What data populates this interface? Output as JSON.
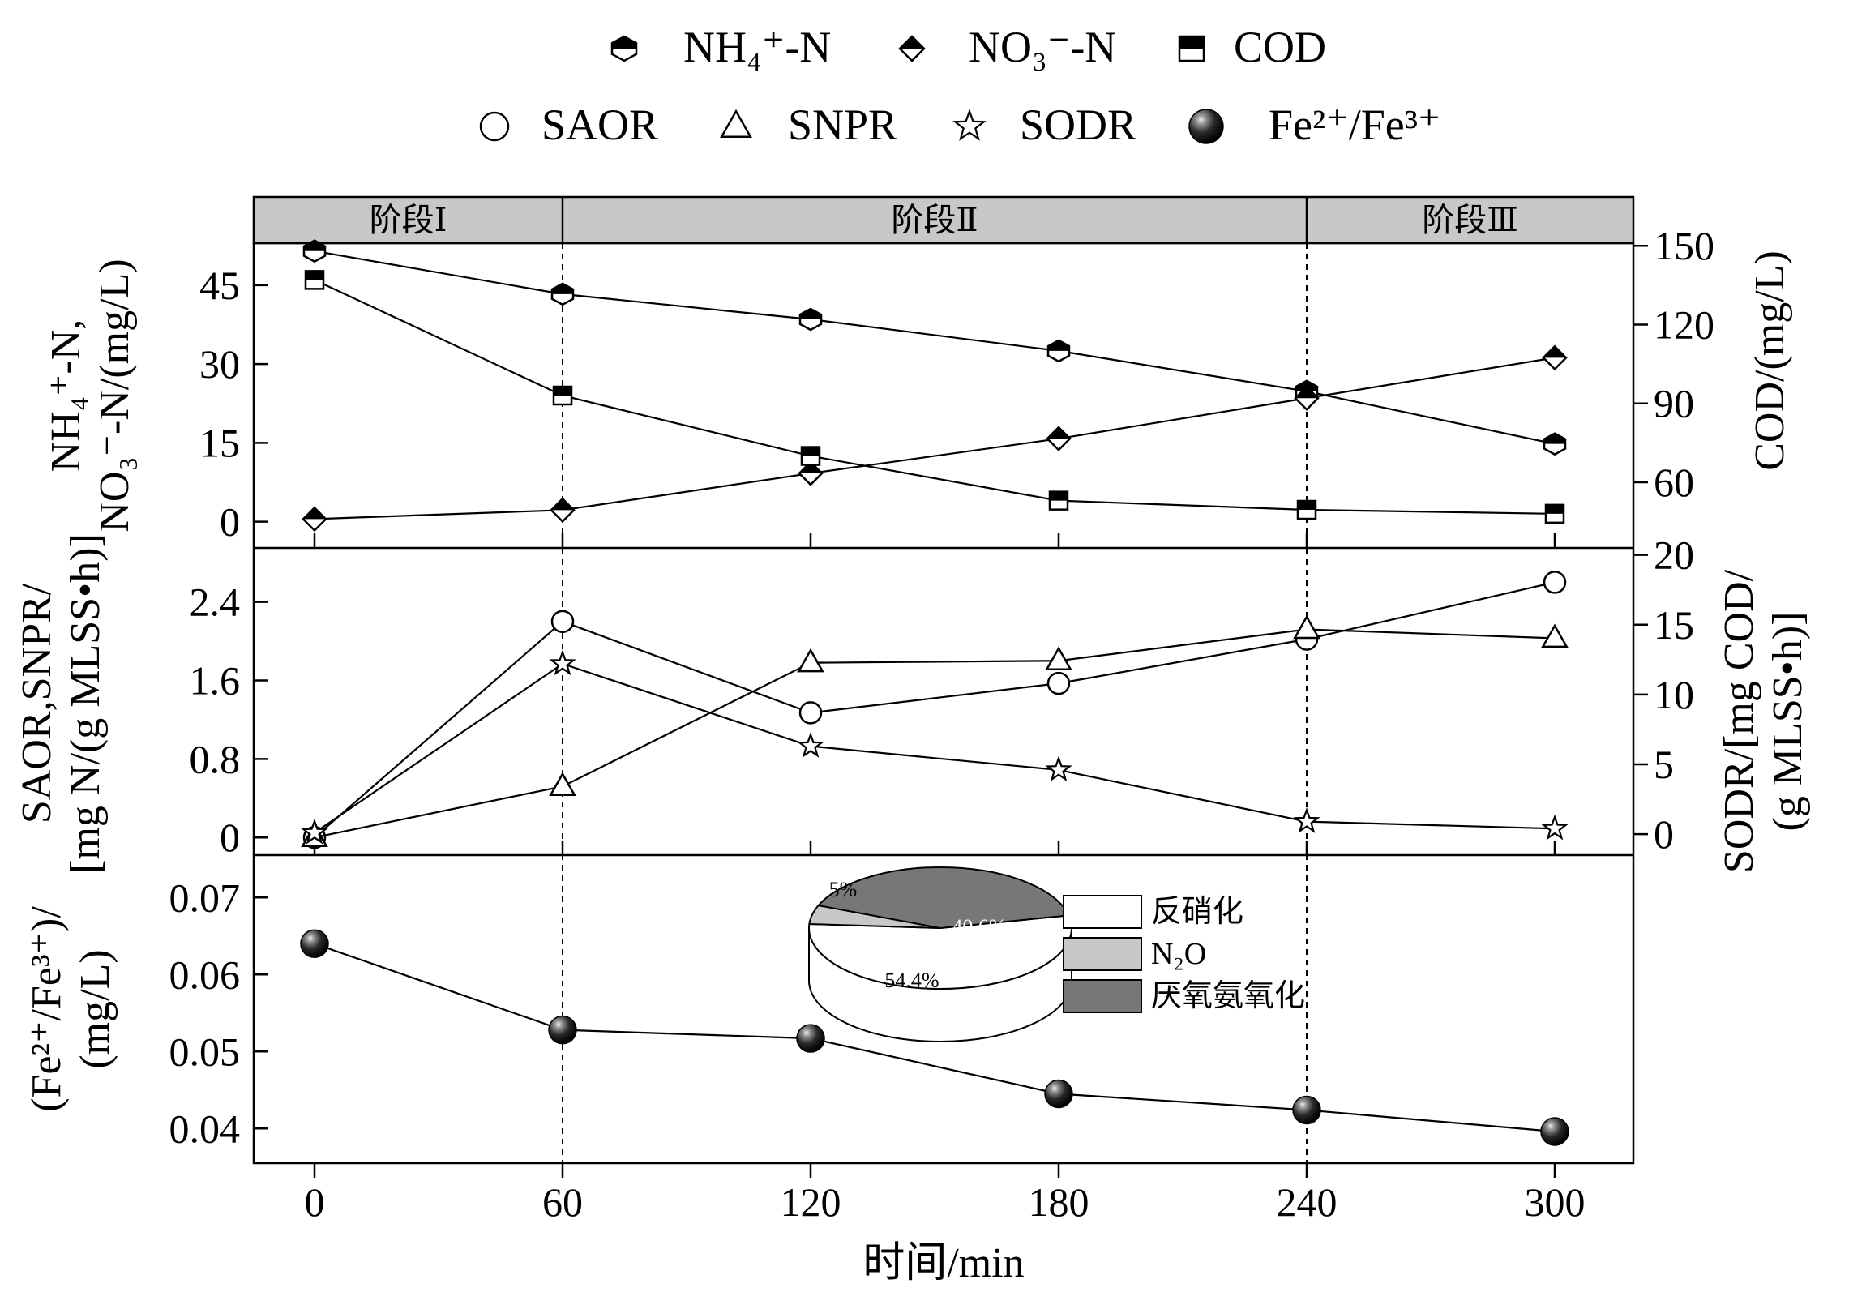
{
  "chart_data": [
    {
      "type": "line",
      "panel": "top",
      "x": [
        0,
        60,
        120,
        180,
        240,
        300
      ],
      "xlabel": "时间/min",
      "xticks": [
        "0",
        "60",
        "120",
        "180",
        "240",
        "300"
      ],
      "ylabel_left": "NH₄⁺-N, NO₃⁻-N/(mg/L)",
      "ylabel_left_lines": [
        "NH₄⁺-N,",
        "NO₃⁻-N/(mg/L)"
      ],
      "ylim_left": [
        -5,
        53
      ],
      "yticks_left": [
        0,
        15,
        30,
        45
      ],
      "ylabel_right": "COD/(mg/L)",
      "ylim_right": [
        35,
        151
      ],
      "yticks_right": [
        60,
        90,
        120,
        150
      ],
      "series": [
        {
          "name": "NH4+-N",
          "axis": "left",
          "marker": "half-hexagon",
          "values": [
            51.5,
            43.3,
            38.5,
            32.5,
            24.8,
            14.8
          ]
        },
        {
          "name": "NO3--N",
          "axis": "left",
          "marker": "half-diamond",
          "values": [
            0.5,
            2.2,
            9.2,
            15.8,
            23.5,
            31.2
          ]
        },
        {
          "name": "COD",
          "axis": "right",
          "marker": "half-square",
          "values": [
            137,
            93,
            70,
            53,
            49.5,
            48
          ]
        }
      ]
    },
    {
      "type": "line",
      "panel": "middle",
      "x": [
        0,
        60,
        120,
        180,
        240,
        300
      ],
      "ylabel_left": "SAOR,SNPR/[mg N/(g MLSS·h)]",
      "ylabel_left_lines": [
        "SAOR,SNPR/",
        "[mg N/(g MLSS•h)]"
      ],
      "ylim_left": [
        -0.18,
        2.95
      ],
      "yticks_left": [
        0,
        0.8,
        1.6,
        2.4
      ],
      "yticks_left_labels": [
        "0",
        "0.8",
        "1.6",
        "2.4"
      ],
      "ylabel_right": "SODR/[mg COD/(g MLSS·h)]",
      "ylabel_right_lines": [
        "SODR/[mg COD/",
        "(g MLSS•h)]"
      ],
      "ylim_right": [
        -1.5,
        20.5
      ],
      "yticks_right": [
        0,
        5,
        10,
        15,
        20
      ],
      "series": [
        {
          "name": "SAOR",
          "axis": "left",
          "marker": "circle",
          "values": [
            0,
            2.2,
            1.27,
            1.57,
            2.02,
            2.6
          ]
        },
        {
          "name": "SNPR",
          "axis": "left",
          "marker": "triangle",
          "values": [
            0,
            0.52,
            1.78,
            1.8,
            2.12,
            2.03
          ]
        },
        {
          "name": "SODR",
          "axis": "right",
          "marker": "star",
          "values": [
            0.1,
            12.2,
            6.3,
            4.6,
            0.9,
            0.4
          ]
        }
      ]
    },
    {
      "type": "line",
      "panel": "bottom",
      "x": [
        0,
        60,
        120,
        180,
        240,
        300
      ],
      "ylabel_left": "(Fe²⁺/Fe³⁺)/(mg/L)",
      "ylabel_left_lines": [
        "(Fe²⁺/Fe³⁺)/",
        "(mg/L)"
      ],
      "ylim_left": [
        0.0355,
        0.0755
      ],
      "yticks_left": [
        0.04,
        0.05,
        0.06,
        0.07
      ],
      "yticks_left_labels": [
        "0.04",
        "0.05",
        "0.06",
        "0.07"
      ],
      "series": [
        {
          "name": "Fe2+/Fe3+",
          "axis": "left",
          "marker": "sphere",
          "values": [
            0.064,
            0.0528,
            0.0517,
            0.0445,
            0.0424,
            0.0396
          ]
        }
      ]
    },
    {
      "type": "pie",
      "title": "",
      "slices": [
        {
          "name": "反硝化",
          "value": 54.4,
          "label": "54.4%",
          "color": "#ffffff"
        },
        {
          "name": "N₂O",
          "value": 5,
          "label": "5%",
          "color": "#c8c8c8"
        },
        {
          "name": "厌氧氨氧化",
          "value": 40.6,
          "label": "40.6%",
          "color": "#777777"
        }
      ]
    }
  ],
  "legend": {
    "row1": [
      "NH₄⁺-N",
      "NO₃⁻-N",
      "COD"
    ],
    "row2": [
      "SAOR",
      "SNPR",
      "SODR",
      "Fe²⁺/Fe³⁺"
    ]
  },
  "stages": [
    {
      "label": "阶段Ⅰ",
      "from": 0,
      "to": 60
    },
    {
      "label": "阶段Ⅱ",
      "from": 60,
      "to": 240
    },
    {
      "label": "阶段Ⅲ",
      "from": 240,
      "to": 300
    }
  ],
  "colors": {
    "stage_bar": "#c8c8c8",
    "line": "#000000",
    "background": "#ffffff"
  }
}
